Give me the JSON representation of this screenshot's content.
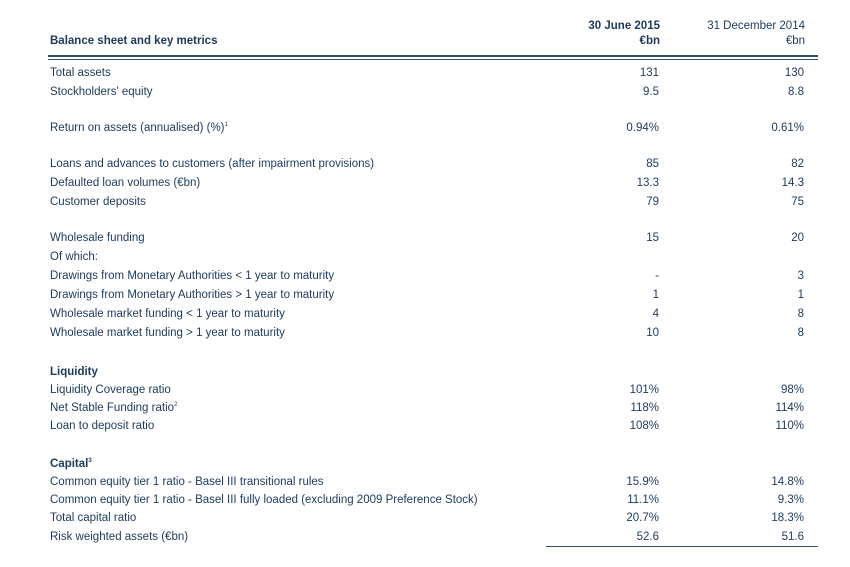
{
  "header": {
    "title": "Balance sheet and key metrics",
    "col1_line1": "30 June 2015",
    "col1_line2": "€bn",
    "col2_line1": "31 December 2014",
    "col2_line2": "€bn"
  },
  "rows": [
    {
      "label": "Total assets",
      "v1": "131",
      "v2": "130"
    },
    {
      "label": "Stockholders' equity",
      "v1": "9.5",
      "v2": "8.8"
    },
    {
      "label": "Return on assets (annualised) (%)",
      "sup": "1",
      "v1": "0.94%",
      "v2": "0.61%"
    },
    {
      "label": "Loans and advances to customers (after impairment provisions)",
      "v1": "85",
      "v2": "82"
    },
    {
      "label": "Defaulted loan volumes (€bn)",
      "v1": "13.3",
      "v2": "14.3"
    },
    {
      "label": "Customer deposits",
      "v1": "79",
      "v2": "75"
    },
    {
      "label": "Wholesale funding",
      "v1": "15",
      "v2": "20"
    },
    {
      "label": "Of which:",
      "v1": "",
      "v2": ""
    },
    {
      "label": "Drawings from Monetary Authorities < 1 year to maturity",
      "v1": "-",
      "v2": "3"
    },
    {
      "label": "Drawings from Monetary Authorities > 1 year to maturity",
      "v1": "1",
      "v2": "1"
    },
    {
      "label": "Wholesale market funding < 1 year to maturity",
      "v1": "4",
      "v2": "8"
    },
    {
      "label": "Wholesale market funding > 1 year to maturity",
      "v1": "10",
      "v2": "8"
    },
    {
      "label": "Liquidity",
      "section": true
    },
    {
      "label": "Liquidity Coverage ratio",
      "v1": "101%",
      "v2": "98%"
    },
    {
      "label": "Net Stable Funding ratio",
      "sup": "2",
      "v1": "118%",
      "v2": "114%"
    },
    {
      "label": "Loan to deposit ratio",
      "v1": "108%",
      "v2": "110%"
    },
    {
      "label": "Capital",
      "sup": "3",
      "section": true
    },
    {
      "label": "Common equity tier 1 ratio - Basel III transitional rules",
      "v1": "15.9%",
      "v2": "14.8%"
    },
    {
      "label": "Common equity tier 1 ratio - Basel III fully loaded (excluding 2009 Preference Stock)",
      "v1": "11.1%",
      "v2": "9.3%"
    },
    {
      "label": "Total capital ratio",
      "v1": "20.7%",
      "v2": "18.3%"
    },
    {
      "label": "Risk weighted assets (€bn)",
      "v1": "52.6",
      "v2": "51.6"
    }
  ]
}
